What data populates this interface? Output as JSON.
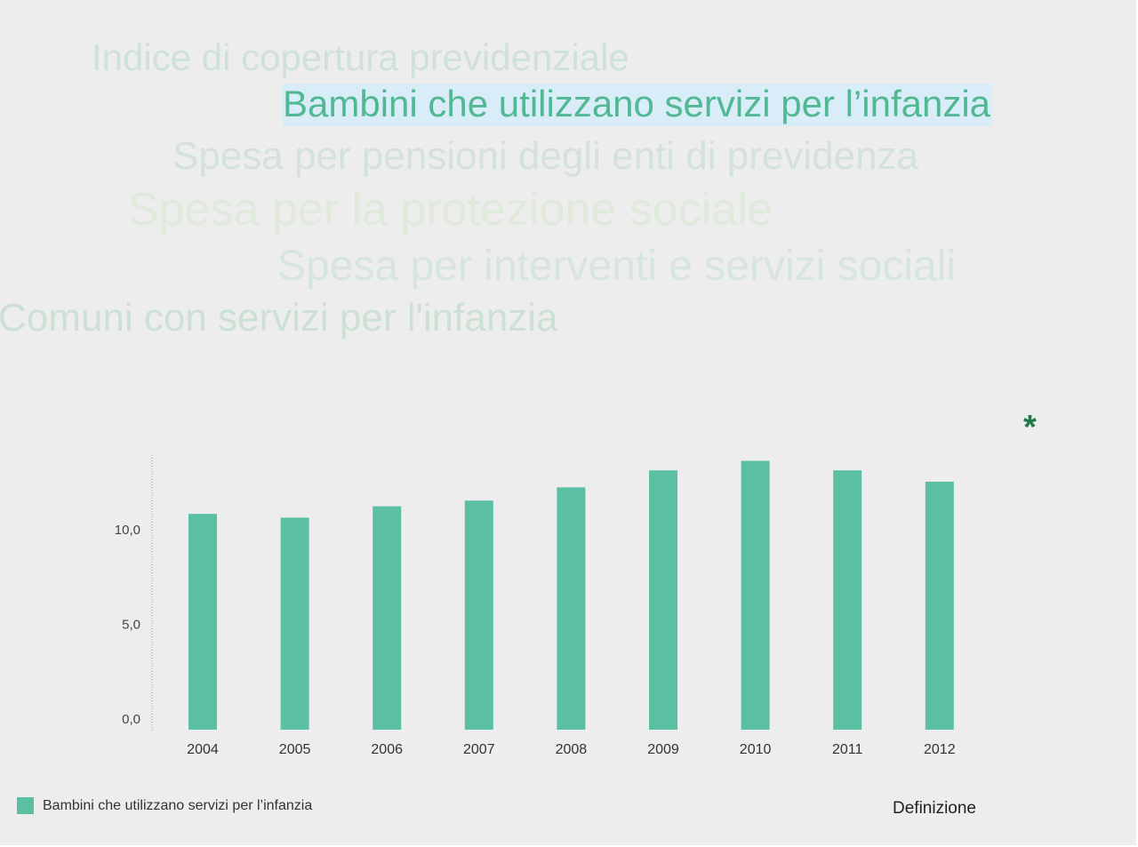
{
  "tag_cloud": [
    "Indice di copertura previdenziale",
    "Bambini che utilizzano servizi per l’infanzia",
    "Spesa per pensioni degli enti di previdenza",
    "Spesa per la protezione sociale",
    "Spesa per interventi e servizi sociali",
    "Comuni con servizi per l'infanzia"
  ],
  "asterisk_symbol": "*",
  "definition_link": "Definizione",
  "colors": {
    "bar": "#5bbfa4",
    "selected_highlight": "#d8edf7",
    "asterisk": "#1f7a4a"
  },
  "chart_data": {
    "type": "bar",
    "categories": [
      "2004",
      "2005",
      "2006",
      "2007",
      "2008",
      "2009",
      "2010",
      "2011",
      "2012"
    ],
    "series": [
      {
        "name": "Bambini che utilizzano servizi per l’infanzia",
        "values": [
          11.4,
          11.2,
          11.8,
          12.1,
          12.8,
          13.7,
          14.2,
          13.7,
          13.1
        ]
      }
    ],
    "y_ticks": [
      "0,0",
      "5,0",
      "10,0"
    ],
    "ylim": [
      0,
      15
    ],
    "legend": "bottom-left",
    "grid": false
  }
}
